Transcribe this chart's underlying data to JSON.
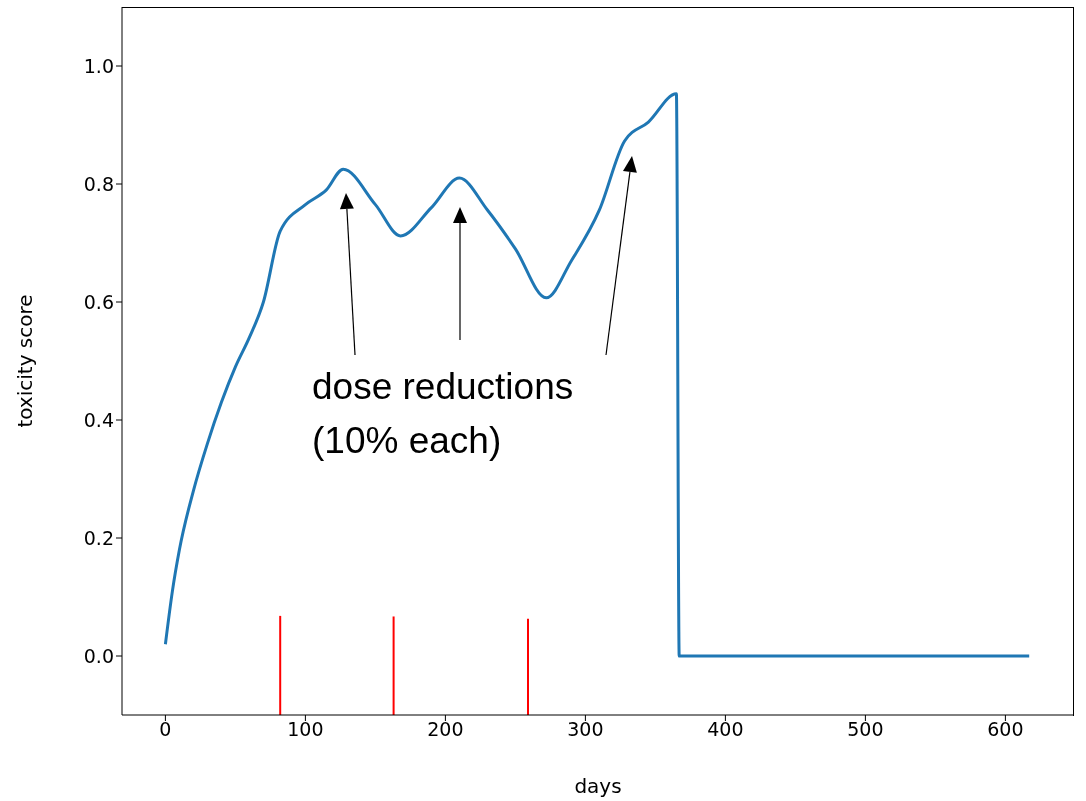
{
  "chart_data": {
    "type": "line",
    "xlabel": "days",
    "ylabel": "toxicity score",
    "xlim": [
      -31,
      649
    ],
    "ylim": [
      -0.1,
      1.1
    ],
    "xticks": [
      0,
      100,
      200,
      300,
      400,
      500,
      600
    ],
    "yticks": [
      {
        "value": 0,
        "label": "0.0"
      },
      0.2,
      0.4,
      0.6,
      0.8,
      {
        "value": 1,
        "label": "1.0"
      }
    ],
    "grid": false,
    "marker": "none",
    "line_style": "solid",
    "annotations": [
      "dose reductions\n(10% each)"
    ],
    "series": [
      {
        "color": "#1f77b4",
        "x": [
          0,
          5,
          10,
          20,
          30,
          40,
          50,
          60,
          70,
          82,
          100,
          115,
          127,
          150,
          168,
          190,
          210,
          230,
          250,
          272,
          290,
          310,
          328,
          345,
          365,
          367,
          617
        ],
        "values": [
          0.02,
          0.11,
          0.18,
          0.28,
          0.36,
          0.43,
          0.49,
          0.54,
          0.6,
          0.72,
          0.765,
          0.79,
          0.825,
          0.765,
          0.712,
          0.76,
          0.81,
          0.756,
          0.69,
          0.607,
          0.67,
          0.756,
          0.873,
          0.905,
          0.953,
          0.0,
          0.0
        ]
      },
      {
        "color": "#ff0000",
        "x": [
          82,
          82
        ],
        "values": [
          -0.1,
          0.068
        ]
      },
      {
        "color": "#ff0000",
        "x": [
          163,
          163
        ],
        "values": [
          -0.1,
          0.067
        ]
      },
      {
        "color": "#ff0000",
        "x": [
          259,
          259
        ],
        "values": [
          -0.1,
          0.063
        ]
      }
    ]
  }
}
